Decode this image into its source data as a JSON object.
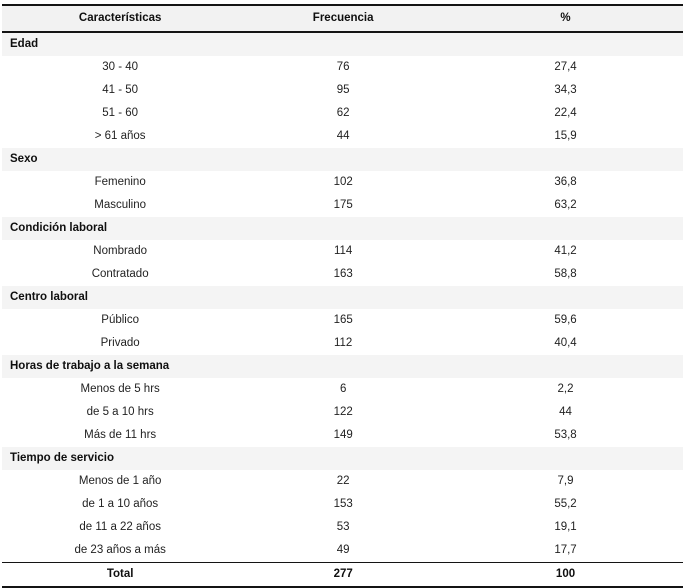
{
  "colors": {
    "band_gray": "#f3f3f3",
    "rule_black": "#141414",
    "text": "#222222"
  },
  "table": {
    "columns": [
      "Características",
      "Frecuencia",
      "%"
    ],
    "sections": [
      {
        "label": "Edad",
        "rows": [
          {
            "label": "30 - 40",
            "frequency": "76",
            "percent": "27,4"
          },
          {
            "label": "41 - 50",
            "frequency": "95",
            "percent": "34,3"
          },
          {
            "label": "51 - 60",
            "frequency": "62",
            "percent": "22,4"
          },
          {
            "label": "> 61 años",
            "frequency": "44",
            "percent": "15,9"
          }
        ]
      },
      {
        "label": "Sexo",
        "rows": [
          {
            "label": "Femenino",
            "frequency": "102",
            "percent": "36,8"
          },
          {
            "label": "Masculino",
            "frequency": "175",
            "percent": "63,2"
          }
        ]
      },
      {
        "label": "Condición laboral",
        "rows": [
          {
            "label": "Nombrado",
            "frequency": "114",
            "percent": "41,2"
          },
          {
            "label": "Contratado",
            "frequency": "163",
            "percent": "58,8"
          }
        ]
      },
      {
        "label": "Centro laboral",
        "rows": [
          {
            "label": "Público",
            "frequency": "165",
            "percent": "59,6"
          },
          {
            "label": "Privado",
            "frequency": "112",
            "percent": "40,4"
          }
        ]
      },
      {
        "label": "Horas de trabajo a la semana",
        "rows": [
          {
            "label": "Menos de 5 hrs",
            "frequency": "6",
            "percent": "2,2"
          },
          {
            "label": "de 5 a 10 hrs",
            "frequency": "122",
            "percent": "44"
          },
          {
            "label": "Más de 11 hrs",
            "frequency": "149",
            "percent": "53,8"
          }
        ]
      },
      {
        "label": "Tiempo de servicio",
        "rows": [
          {
            "label": "Menos de 1 año",
            "frequency": "22",
            "percent": "7,9"
          },
          {
            "label": "de 1 a 10 años",
            "frequency": "153",
            "percent": "55,2"
          },
          {
            "label": "de 11 a 22 años",
            "frequency": "53",
            "percent": "19,1"
          },
          {
            "label": "de 23 años a más",
            "frequency": "49",
            "percent": "17,7"
          }
        ]
      }
    ],
    "total": {
      "label": "Total",
      "frequency": "277",
      "percent": "100"
    }
  }
}
